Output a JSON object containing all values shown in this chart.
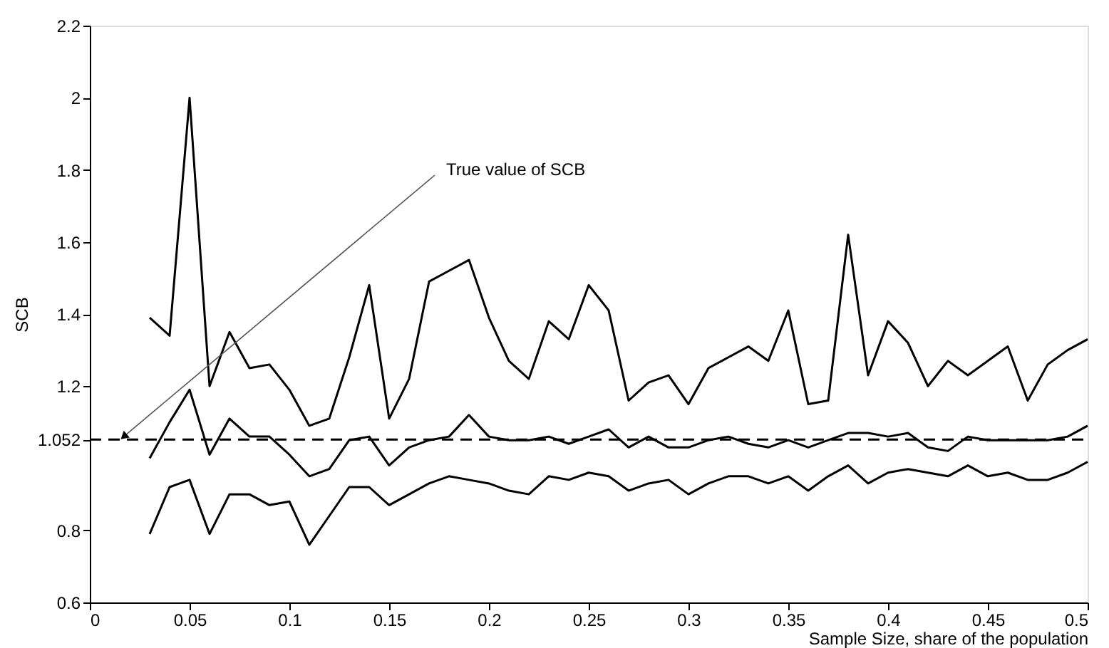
{
  "chart_data": {
    "type": "line",
    "xlabel": "Sample  Size, share of the population",
    "ylabel": "SCB",
    "x": [
      0.03,
      0.04,
      0.05,
      0.06,
      0.07,
      0.08,
      0.09,
      0.1,
      0.11,
      0.12,
      0.13,
      0.14,
      0.15,
      0.16,
      0.17,
      0.18,
      0.19,
      0.2,
      0.21,
      0.22,
      0.23,
      0.24,
      0.25,
      0.26,
      0.27,
      0.28,
      0.29,
      0.3,
      0.31,
      0.32,
      0.33,
      0.34,
      0.35,
      0.36,
      0.37,
      0.38,
      0.39,
      0.4,
      0.41,
      0.42,
      0.43,
      0.44,
      0.45,
      0.46,
      0.47,
      0.48,
      0.49,
      0.5
    ],
    "series": [
      {
        "color": "#000000",
        "values": [
          1.39,
          1.34,
          2.0,
          1.2,
          1.35,
          1.25,
          1.26,
          1.19,
          1.09,
          1.11,
          1.28,
          1.48,
          1.11,
          1.22,
          1.49,
          1.52,
          1.55,
          1.39,
          1.27,
          1.22,
          1.38,
          1.33,
          1.48,
          1.41,
          1.16,
          1.21,
          1.23,
          1.15,
          1.25,
          1.28,
          1.31,
          1.27,
          1.41,
          1.15,
          1.16,
          1.62,
          1.23,
          1.38,
          1.32,
          1.2,
          1.27,
          1.23,
          1.27,
          1.31,
          1.16,
          1.26,
          1.3,
          1.33
        ]
      },
      {
        "color": "#000000",
        "values": [
          1.0,
          1.1,
          1.19,
          1.01,
          1.11,
          1.06,
          1.06,
          1.01,
          0.95,
          0.97,
          1.05,
          1.06,
          0.98,
          1.03,
          1.05,
          1.06,
          1.12,
          1.06,
          1.05,
          1.05,
          1.06,
          1.04,
          1.06,
          1.08,
          1.03,
          1.06,
          1.03,
          1.03,
          1.05,
          1.06,
          1.04,
          1.03,
          1.05,
          1.03,
          1.05,
          1.07,
          1.07,
          1.06,
          1.07,
          1.03,
          1.02,
          1.06,
          1.05,
          1.05,
          1.05,
          1.05,
          1.06,
          1.09
        ]
      },
      {
        "color": "#000000",
        "values": [
          0.79,
          0.92,
          0.94,
          0.79,
          0.9,
          0.9,
          0.87,
          0.88,
          0.76,
          0.84,
          0.92,
          0.92,
          0.87,
          0.9,
          0.93,
          0.95,
          0.94,
          0.93,
          0.91,
          0.9,
          0.95,
          0.94,
          0.96,
          0.95,
          0.91,
          0.93,
          0.94,
          0.9,
          0.93,
          0.95,
          0.95,
          0.93,
          0.95,
          0.91,
          0.95,
          0.98,
          0.93,
          0.96,
          0.97,
          0.96,
          0.95,
          0.98,
          0.95,
          0.96,
          0.94,
          0.94,
          0.96,
          0.99
        ]
      }
    ],
    "xlim": [
      0,
      0.5
    ],
    "xticks": [
      0,
      0.05,
      0.1,
      0.15,
      0.2,
      0.25,
      0.3,
      0.35,
      0.4,
      0.45,
      0.5
    ],
    "ylim": [
      0.6,
      2.2
    ],
    "yticks": [
      0.6,
      0.8,
      1.052,
      1.2,
      1.4,
      1.6,
      1.8,
      2,
      2.2
    ],
    "ref_lines": [
      {
        "axis": "y",
        "value": 1.052,
        "color": "#000000",
        "line_style": "dashed"
      }
    ],
    "annotations": [
      {
        "text": "True value of SCB",
        "x": 0.017,
        "y": 1.06
      }
    ],
    "grid": false,
    "marker": "none",
    "line_style": "solid"
  }
}
